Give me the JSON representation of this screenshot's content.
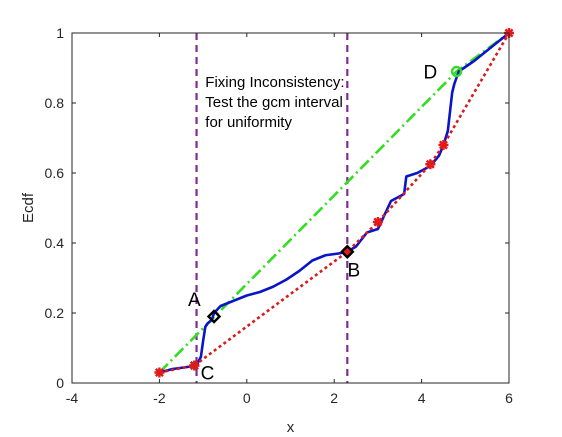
{
  "chart_data": {
    "type": "line",
    "title": "",
    "xlabel": "x",
    "ylabel": "Ecdf",
    "xlim": [
      -4,
      6
    ],
    "ylim": [
      0,
      1
    ],
    "xticks": [
      -4,
      -2,
      0,
      2,
      4,
      6
    ],
    "yticks": [
      0,
      0.2,
      0.4,
      0.6,
      0.8,
      1
    ],
    "xtick_labels": [
      "-4",
      "-2",
      "0",
      "2",
      "4",
      "6"
    ],
    "ytick_labels": [
      "0",
      "0.2",
      "0.4",
      "0.6",
      "0.8",
      "1"
    ],
    "grid": false,
    "colors": {
      "ecdf": "#0a14c8",
      "gcm": "#d81c1c",
      "gcm_marker": "#e41a1a",
      "lcm": "#33dd22",
      "vline": "#7e2f8e",
      "point_marker": "#000000"
    },
    "series": [
      {
        "style": "solid",
        "x": [
          -2.0,
          -1.7,
          -1.4,
          -1.15,
          -1.05,
          -1.0,
          -0.95,
          -0.9,
          -0.8,
          -0.75,
          -0.6,
          -0.3,
          0.0,
          0.3,
          0.6,
          0.9,
          1.2,
          1.5,
          1.8,
          2.1,
          2.3,
          2.5,
          2.75,
          3.0,
          3.3,
          3.6,
          3.65,
          3.9,
          4.2,
          4.4,
          4.5,
          4.6,
          4.7,
          4.75,
          4.85,
          5.2,
          5.6,
          6.0
        ],
        "y": [
          0.03,
          0.04,
          0.045,
          0.05,
          0.075,
          0.12,
          0.16,
          0.17,
          0.18,
          0.2,
          0.22,
          0.235,
          0.25,
          0.26,
          0.275,
          0.295,
          0.32,
          0.35,
          0.365,
          0.37,
          0.375,
          0.39,
          0.43,
          0.44,
          0.52,
          0.54,
          0.59,
          0.6,
          0.62,
          0.65,
          0.68,
          0.72,
          0.83,
          0.855,
          0.89,
          0.92,
          0.96,
          1.0
        ]
      },
      {
        "style": "dotted",
        "markers": "star",
        "x": [
          -2.0,
          -1.2,
          2.3,
          3.0,
          4.2,
          4.5,
          6.0
        ],
        "y": [
          0.03,
          0.05,
          0.375,
          0.46,
          0.625,
          0.68,
          1.0
        ]
      },
      {
        "style": "dash-dot",
        "x": [
          -2.0,
          4.8,
          6.0
        ],
        "y": [
          0.03,
          0.89,
          1.0
        ]
      }
    ],
    "vlines": [
      -1.15,
      2.3
    ],
    "points": [
      {
        "label": "A",
        "x": -0.75,
        "y": 0.19,
        "marker": "diamond",
        "color": "#000000",
        "label_dx": -0.45,
        "label_dy": 0.05
      },
      {
        "label": "B",
        "x": 2.3,
        "y": 0.375,
        "marker": "diamond",
        "color": "#000000",
        "label_dx": 0.15,
        "label_dy": -0.05
      },
      {
        "label": "C",
        "x": -1.2,
        "y": 0.05,
        "marker": "star",
        "color": "#d81c1c",
        "label_dx": 0.3,
        "label_dy": -0.02
      },
      {
        "label": "D",
        "x": 4.8,
        "y": 0.89,
        "marker": "circle",
        "color": "#33dd22",
        "label_dx": -0.6,
        "label_dy": 0.0
      }
    ],
    "annotation": {
      "lines": [
        "Fixing Inconsistency:",
        "Test the gcm interval",
        "for uniformity"
      ],
      "x": -0.95,
      "y": 0.88
    }
  }
}
